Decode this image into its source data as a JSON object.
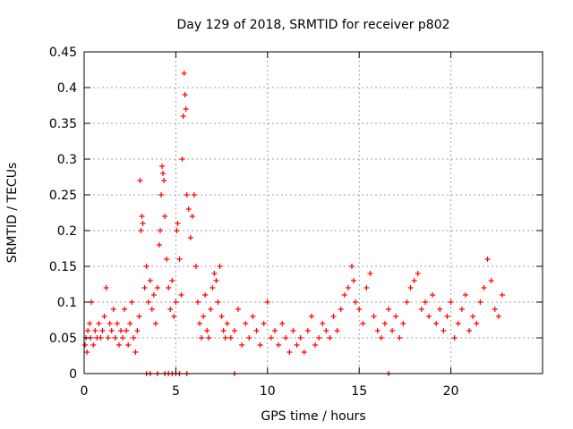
{
  "chart_data": {
    "type": "scatter",
    "title": "Day 129 of 2018, SRMTID for receiver p802",
    "xlabel": "GPS time / hours",
    "ylabel": "SRMTID / TECUs",
    "xlim": [
      0,
      25
    ],
    "ylim": [
      0,
      0.45
    ],
    "xticks": [
      0,
      5,
      10,
      15,
      20
    ],
    "xtick_labels": [
      "0",
      "5",
      "10",
      "15",
      "20"
    ],
    "yticks": [
      0,
      0.05,
      0.1,
      0.15,
      0.2,
      0.25,
      0.3,
      0.35,
      0.4,
      0.45
    ],
    "ytick_labels": [
      "0",
      "0.05",
      "0.1",
      "0.15",
      "0.2",
      "0.25",
      "0.3",
      "0.35",
      "0.4",
      "0.45"
    ],
    "grid": true,
    "marker": "+",
    "color": "#ff0000",
    "series": [
      {
        "name": "SRMTID",
        "x": [
          0.05,
          0.1,
          0.15,
          0.2,
          0.3,
          0.35,
          0.4,
          0.5,
          0.6,
          0.7,
          0.8,
          0.9,
          1.0,
          1.1,
          1.2,
          1.3,
          1.4,
          1.5,
          1.6,
          1.7,
          1.8,
          1.9,
          2.0,
          2.1,
          2.2,
          2.3,
          2.4,
          2.5,
          2.6,
          2.7,
          2.8,
          2.9,
          3.0,
          3.05,
          3.1,
          3.15,
          3.2,
          3.3,
          3.4,
          3.5,
          3.6,
          3.7,
          3.8,
          3.9,
          4.0,
          4.1,
          4.15,
          4.2,
          4.25,
          4.3,
          4.35,
          4.4,
          4.5,
          4.6,
          4.7,
          4.8,
          4.9,
          5.0,
          5.05,
          5.1,
          5.2,
          5.3,
          5.35,
          5.4,
          5.45,
          5.5,
          5.55,
          5.6,
          5.7,
          5.8,
          5.9,
          6.0,
          6.1,
          6.2,
          6.3,
          6.4,
          6.5,
          6.6,
          6.7,
          6.8,
          6.9,
          7.0,
          7.1,
          7.2,
          7.3,
          7.4,
          7.5,
          7.6,
          7.7,
          7.8,
          8.0,
          8.2,
          8.4,
          8.6,
          8.8,
          9.0,
          9.2,
          9.4,
          9.6,
          9.8,
          10.0,
          10.2,
          10.4,
          10.6,
          10.8,
          11.0,
          11.2,
          11.4,
          11.6,
          11.8,
          12.0,
          12.2,
          12.4,
          12.6,
          12.8,
          13.0,
          13.2,
          13.4,
          13.6,
          13.8,
          14.0,
          14.2,
          14.4,
          14.6,
          14.7,
          14.8,
          15.0,
          15.2,
          15.4,
          15.6,
          15.8,
          16.0,
          16.2,
          16.4,
          16.6,
          16.8,
          17.0,
          17.2,
          17.4,
          17.6,
          17.8,
          18.0,
          18.2,
          18.4,
          18.6,
          18.8,
          19.0,
          19.2,
          19.4,
          19.6,
          19.8,
          20.0,
          20.2,
          20.4,
          20.6,
          20.8,
          21.0,
          21.2,
          21.4,
          21.6,
          21.8,
          22.0,
          22.2,
          22.4,
          22.6,
          22.8,
          3.4,
          3.6,
          4.0,
          4.4,
          4.6,
          4.8,
          5.0,
          5.2,
          5.6,
          8.2,
          16.6
        ],
        "y": [
          0.04,
          0.05,
          0.03,
          0.06,
          0.07,
          0.05,
          0.1,
          0.04,
          0.06,
          0.05,
          0.07,
          0.05,
          0.06,
          0.08,
          0.12,
          0.05,
          0.07,
          0.06,
          0.09,
          0.05,
          0.07,
          0.04,
          0.06,
          0.05,
          0.09,
          0.06,
          0.04,
          0.07,
          0.1,
          0.05,
          0.03,
          0.06,
          0.08,
          0.27,
          0.2,
          0.22,
          0.21,
          0.12,
          0.15,
          0.1,
          0.13,
          0.09,
          0.11,
          0.07,
          0.12,
          0.18,
          0.2,
          0.25,
          0.29,
          0.28,
          0.27,
          0.22,
          0.16,
          0.12,
          0.09,
          0.13,
          0.08,
          0.1,
          0.2,
          0.21,
          0.16,
          0.11,
          0.3,
          0.36,
          0.42,
          0.39,
          0.37,
          0.25,
          0.23,
          0.19,
          0.22,
          0.25,
          0.15,
          0.1,
          0.07,
          0.05,
          0.08,
          0.11,
          0.06,
          0.05,
          0.09,
          0.12,
          0.14,
          0.13,
          0.1,
          0.15,
          0.08,
          0.06,
          0.05,
          0.07,
          0.05,
          0.06,
          0.09,
          0.04,
          0.07,
          0.05,
          0.08,
          0.06,
          0.04,
          0.07,
          0.1,
          0.05,
          0.06,
          0.04,
          0.07,
          0.05,
          0.03,
          0.06,
          0.04,
          0.05,
          0.03,
          0.06,
          0.08,
          0.04,
          0.05,
          0.07,
          0.06,
          0.05,
          0.08,
          0.06,
          0.09,
          0.11,
          0.12,
          0.15,
          0.13,
          0.1,
          0.09,
          0.07,
          0.12,
          0.14,
          0.08,
          0.06,
          0.05,
          0.07,
          0.09,
          0.06,
          0.08,
          0.05,
          0.07,
          0.1,
          0.12,
          0.13,
          0.14,
          0.09,
          0.1,
          0.08,
          0.11,
          0.07,
          0.09,
          0.06,
          0.08,
          0.1,
          0.05,
          0.07,
          0.09,
          0.11,
          0.06,
          0.08,
          0.07,
          0.1,
          0.12,
          0.16,
          0.13,
          0.09,
          0.08,
          0.11,
          0,
          0,
          0,
          0,
          0,
          0,
          0,
          0,
          0,
          0,
          0
        ]
      }
    ]
  }
}
